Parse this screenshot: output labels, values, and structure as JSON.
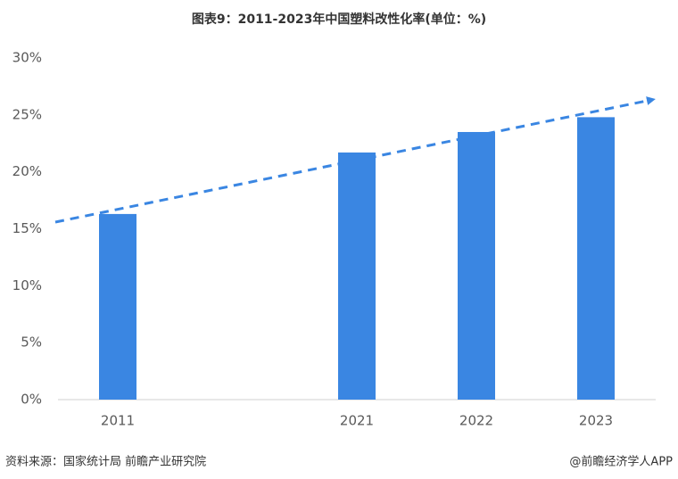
{
  "chart_data": {
    "type": "bar",
    "title": "图表9：2011-2023年中国塑料改性化率(单位：%)",
    "categories": [
      "2011",
      null,
      "2021",
      "2022",
      "2023"
    ],
    "values": [
      16.3,
      null,
      21.7,
      23.5,
      24.8
    ],
    "color": "#3a86e2",
    "ylim": [
      0,
      30
    ],
    "yticks": [
      {
        "value": 0,
        "label": "0%"
      },
      {
        "value": 5,
        "label": "5%"
      },
      {
        "value": 10,
        "label": "10%"
      },
      {
        "value": 15,
        "label": "15%"
      },
      {
        "value": 20,
        "label": "20%"
      },
      {
        "value": 25,
        "label": "25%"
      },
      {
        "value": 30,
        "label": "30%"
      }
    ],
    "grid": false
  },
  "source": "资料来源：国家统计局 前瞻产业研究院",
  "credit": "@前瞻经济学人APP"
}
